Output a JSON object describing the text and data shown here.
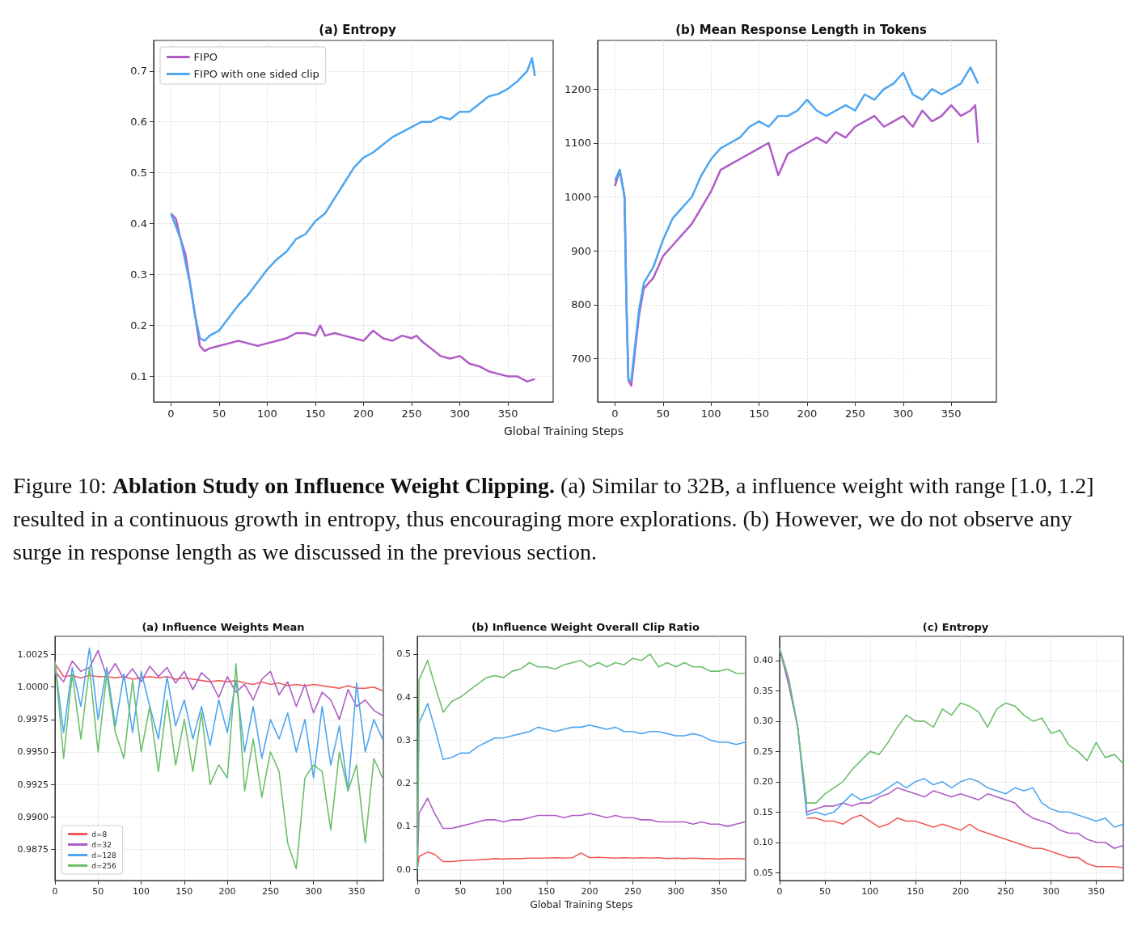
{
  "chart_data": [
    {
      "type": "line",
      "title": "(a) Entropy",
      "xlabel": "Global Training Steps",
      "xlim": [
        -18,
        397
      ],
      "xticks": [
        0,
        50,
        100,
        150,
        200,
        250,
        300,
        350
      ],
      "ylim": [
        0.05,
        0.76
      ],
      "yticks": [
        0.1,
        0.2,
        0.3,
        0.4,
        0.5,
        0.6,
        0.7
      ],
      "grid": true,
      "legend": "top left",
      "series": [
        {
          "name": "FIPO",
          "color": "#b05cc6",
          "x": [
            0,
            5,
            10,
            15,
            20,
            25,
            30,
            35,
            40,
            50,
            60,
            70,
            80,
            90,
            100,
            110,
            120,
            130,
            140,
            150,
            155,
            160,
            170,
            180,
            190,
            200,
            210,
            220,
            230,
            240,
            250,
            255,
            260,
            270,
            280,
            290,
            300,
            310,
            320,
            330,
            340,
            350,
            360,
            370,
            378
          ],
          "values": [
            0.42,
            0.41,
            0.37,
            0.34,
            0.28,
            0.22,
            0.16,
            0.15,
            0.155,
            0.16,
            0.165,
            0.17,
            0.165,
            0.16,
            0.165,
            0.17,
            0.175,
            0.185,
            0.185,
            0.18,
            0.2,
            0.18,
            0.185,
            0.18,
            0.175,
            0.17,
            0.19,
            0.175,
            0.17,
            0.18,
            0.175,
            0.18,
            0.17,
            0.155,
            0.14,
            0.135,
            0.14,
            0.125,
            0.12,
            0.11,
            0.105,
            0.1,
            0.1,
            0.09,
            0.095
          ]
        },
        {
          "name": "FIPO with one sided clip",
          "color": "#4da6f0",
          "x": [
            0,
            10,
            20,
            25,
            30,
            35,
            40,
            50,
            60,
            70,
            80,
            90,
            100,
            110,
            120,
            130,
            140,
            150,
            160,
            170,
            180,
            190,
            200,
            210,
            220,
            230,
            240,
            250,
            260,
            270,
            280,
            290,
            300,
            310,
            320,
            330,
            340,
            350,
            360,
            370,
            375,
            378
          ],
          "values": [
            0.42,
            0.37,
            0.28,
            0.22,
            0.175,
            0.17,
            0.18,
            0.19,
            0.215,
            0.24,
            0.26,
            0.285,
            0.31,
            0.33,
            0.345,
            0.37,
            0.38,
            0.405,
            0.42,
            0.45,
            0.48,
            0.51,
            0.53,
            0.54,
            0.555,
            0.57,
            0.58,
            0.59,
            0.6,
            0.6,
            0.61,
            0.605,
            0.62,
            0.62,
            0.635,
            0.65,
            0.655,
            0.665,
            0.68,
            0.7,
            0.725,
            0.69
          ]
        }
      ]
    },
    {
      "type": "line",
      "title": "(b) Mean Response Length in Tokens",
      "xlim": [
        -18,
        397
      ],
      "xticks": [
        0,
        50,
        100,
        150,
        200,
        250,
        300,
        350
      ],
      "ylim": [
        620,
        1290
      ],
      "yticks": [
        700,
        800,
        900,
        1000,
        1100,
        1200
      ],
      "grid": true,
      "series": [
        {
          "color": "#b05cc6",
          "x": [
            0,
            5,
            10,
            12,
            14,
            17,
            20,
            25,
            30,
            40,
            50,
            60,
            70,
            80,
            90,
            100,
            110,
            120,
            130,
            140,
            150,
            160,
            170,
            180,
            190,
            200,
            210,
            220,
            230,
            240,
            250,
            260,
            270,
            280,
            290,
            300,
            310,
            320,
            330,
            340,
            350,
            360,
            370,
            375,
            378
          ],
          "values": [
            1020,
            1050,
            1000,
            800,
            660,
            650,
            700,
            780,
            830,
            850,
            890,
            910,
            930,
            950,
            980,
            1010,
            1050,
            1060,
            1070,
            1080,
            1090,
            1100,
            1040,
            1080,
            1090,
            1100,
            1110,
            1100,
            1120,
            1110,
            1130,
            1140,
            1150,
            1130,
            1140,
            1150,
            1130,
            1160,
            1140,
            1150,
            1170,
            1150,
            1160,
            1170,
            1100
          ]
        },
        {
          "color": "#4da6f0",
          "x": [
            0,
            5,
            10,
            12,
            14,
            17,
            20,
            25,
            30,
            40,
            50,
            60,
            70,
            80,
            90,
            100,
            110,
            120,
            130,
            140,
            150,
            160,
            170,
            180,
            190,
            200,
            210,
            220,
            230,
            240,
            250,
            260,
            270,
            280,
            290,
            300,
            310,
            320,
            330,
            340,
            350,
            360,
            370,
            378
          ],
          "values": [
            1030,
            1050,
            1000,
            800,
            660,
            660,
            710,
            790,
            840,
            870,
            920,
            960,
            980,
            1000,
            1040,
            1070,
            1090,
            1100,
            1110,
            1130,
            1140,
            1130,
            1150,
            1150,
            1160,
            1180,
            1160,
            1150,
            1160,
            1170,
            1160,
            1190,
            1180,
            1200,
            1210,
            1230,
            1190,
            1180,
            1200,
            1190,
            1200,
            1210,
            1240,
            1210
          ]
        }
      ]
    },
    {
      "type": "other",
      "annotations": [
        "Figure 10: ",
        "Ablation Study on Influence Weight Clipping.",
        " (a) Similar to 32B, a influence weight with range [1.0, 1.2] resulted in a continuous growth in entropy, thus encouraging more explorations. (b) However, we do not observe any surge in response length as we discussed in the previous section."
      ]
    },
    {
      "type": "line",
      "title": "(a) Influence Weights Mean",
      "x": [
        0,
        10,
        20,
        30,
        40,
        50,
        60,
        70,
        80,
        90,
        100,
        110,
        120,
        130,
        140,
        150,
        160,
        170,
        180,
        190,
        200,
        210,
        220,
        230,
        240,
        250,
        260,
        270,
        280,
        290,
        300,
        310,
        320,
        330,
        340,
        350,
        360,
        370,
        380
      ],
      "xlim": [
        0,
        381
      ],
      "xticks": [
        0,
        50,
        100,
        150,
        200,
        250,
        300,
        350
      ],
      "ylim": [
        0.9851,
        1.0039
      ],
      "yticks": [
        {
          "value": 0.9875,
          "label": "0.9875"
        },
        {
          "value": 0.99,
          "label": "0.9900"
        },
        {
          "value": 0.9925,
          "label": "0.9925"
        },
        {
          "value": 0.995,
          "label": "0.9950"
        },
        {
          "value": 0.9975,
          "label": "0.9975"
        },
        {
          "value": 1,
          "label": "1.0000"
        },
        1.0025
      ],
      "grid": true,
      "legend": "bottom left",
      "series": [
        {
          "name": "d=8",
          "color": "#ef5a5a",
          "values": [
            1.0018,
            1.0008,
            1.0009,
            1.0007,
            1.0009,
            1.0008,
            1.0008,
            1.0007,
            1.0008,
            1.0006,
            1.0007,
            1.0008,
            1.0007,
            1.0008,
            1.0006,
            1.0007,
            1.0006,
            1.0005,
            1.0004,
            1.0005,
            1.0004,
            1.0005,
            1.0003,
            1.0002,
            1.0004,
            1.0002,
            1.0003,
            1.0001,
            1.0002,
            1.0001,
            1.0002,
            1.0001,
            1.0,
            0.9999,
            1.0001,
            0.9999,
            0.9999,
            1.0,
            0.9997
          ]
        },
        {
          "name": "d=32",
          "color": "#b05cc6",
          "values": [
            1.0012,
            1.0004,
            1.002,
            1.0012,
            1.0015,
            1.0028,
            1.0008,
            1.0018,
            1.0006,
            1.0014,
            1.0004,
            1.0016,
            1.0008,
            1.0015,
            1.0003,
            1.0012,
            0.9998,
            1.0011,
            1.0005,
            0.9992,
            1.0008,
            0.9996,
            1.0002,
            0.999,
            1.0006,
            1.0012,
            0.9994,
            1.0004,
            0.9985,
            1.0002,
            0.998,
            0.9996,
            0.999,
            0.9975,
            0.9998,
            0.9985,
            0.999,
            0.9982,
            0.9978
          ]
        },
        {
          "name": "d=128",
          "color": "#4da6f0",
          "values": [
            1.0018,
            0.9965,
            1.0015,
            0.9985,
            1.003,
            0.9975,
            1.0015,
            0.997,
            1.001,
            0.9965,
            1.0012,
            0.9985,
            0.996,
            1.0008,
            0.997,
            0.999,
            0.996,
            0.9985,
            0.9955,
            0.999,
            0.9965,
            1.0005,
            0.995,
            0.9985,
            0.9945,
            0.9975,
            0.996,
            0.998,
            0.995,
            0.9975,
            0.993,
            0.9985,
            0.994,
            0.997,
            0.992,
            1.0003,
            0.995,
            0.9975,
            0.996
          ]
        },
        {
          "name": "d=256",
          "color": "#6cbf6c",
          "values": [
            1.002,
            0.9945,
            1.001,
            0.996,
            1.0015,
            0.995,
            1.001,
            0.9965,
            0.9945,
            1.0005,
            0.995,
            0.9985,
            0.9935,
            0.999,
            0.994,
            0.9975,
            0.9935,
            0.998,
            0.9925,
            0.994,
            0.993,
            1.0018,
            0.992,
            0.996,
            0.9915,
            0.995,
            0.9935,
            0.988,
            0.986,
            0.993,
            0.994,
            0.9935,
            0.989,
            0.995,
            0.992,
            0.994,
            0.988,
            0.9945,
            0.993
          ]
        }
      ]
    },
    {
      "type": "line",
      "title": "(b) Influence Weight Overall Clip Ratio",
      "xlabel": "Global Training Steps",
      "x": [
        0,
        2,
        12,
        20,
        30,
        40,
        50,
        60,
        70,
        80,
        90,
        100,
        110,
        120,
        130,
        140,
        150,
        160,
        170,
        180,
        190,
        200,
        210,
        220,
        230,
        240,
        250,
        260,
        270,
        280,
        290,
        300,
        310,
        320,
        330,
        340,
        350,
        360,
        370,
        380
      ],
      "xlim": [
        0,
        381
      ],
      "xticks": [
        0,
        50,
        100,
        150,
        200,
        250,
        300,
        350
      ],
      "ylim": [
        -0.026,
        0.541
      ],
      "yticks": [
        {
          "value": 0,
          "label": "0.0"
        },
        0.1,
        0.2,
        0.3,
        0.4,
        0.5
      ],
      "grid": true,
      "series": [
        {
          "color": "#ef5a5a",
          "values": [
            0,
            0.03,
            0.04,
            0.035,
            0.018,
            0.018,
            0.02,
            0.021,
            0.022,
            0.023,
            0.025,
            0.024,
            0.025,
            0.025,
            0.026,
            0.026,
            0.026,
            0.027,
            0.026,
            0.027,
            0.038,
            0.027,
            0.028,
            0.027,
            0.026,
            0.027,
            0.026,
            0.027,
            0.026,
            0.027,
            0.025,
            0.026,
            0.025,
            0.026,
            0.025,
            0.025,
            0.024,
            0.025,
            0.025,
            0.024
          ]
        },
        {
          "color": "#b05cc6",
          "values": [
            0,
            0.13,
            0.165,
            0.13,
            0.095,
            0.095,
            0.1,
            0.105,
            0.11,
            0.115,
            0.115,
            0.11,
            0.115,
            0.115,
            0.12,
            0.125,
            0.125,
            0.125,
            0.12,
            0.125,
            0.125,
            0.13,
            0.125,
            0.12,
            0.125,
            0.12,
            0.12,
            0.115,
            0.115,
            0.11,
            0.11,
            0.11,
            0.11,
            0.105,
            0.11,
            0.105,
            0.105,
            0.1,
            0.105,
            0.11
          ]
        },
        {
          "color": "#4da6f0",
          "values": [
            0,
            0.34,
            0.385,
            0.33,
            0.255,
            0.26,
            0.27,
            0.27,
            0.285,
            0.295,
            0.305,
            0.305,
            0.31,
            0.315,
            0.32,
            0.33,
            0.325,
            0.32,
            0.325,
            0.33,
            0.33,
            0.335,
            0.33,
            0.325,
            0.33,
            0.32,
            0.32,
            0.315,
            0.32,
            0.32,
            0.315,
            0.31,
            0.31,
            0.315,
            0.31,
            0.3,
            0.295,
            0.295,
            0.29,
            0.295
          ]
        },
        {
          "color": "#6cbf6c",
          "values": [
            0,
            0.44,
            0.485,
            0.43,
            0.365,
            0.39,
            0.4,
            0.415,
            0.43,
            0.445,
            0.45,
            0.445,
            0.46,
            0.465,
            0.48,
            0.47,
            0.47,
            0.465,
            0.475,
            0.48,
            0.485,
            0.47,
            0.48,
            0.47,
            0.48,
            0.475,
            0.49,
            0.485,
            0.5,
            0.47,
            0.48,
            0.47,
            0.48,
            0.47,
            0.47,
            0.46,
            0.46,
            0.465,
            0.455,
            0.455
          ]
        }
      ]
    },
    {
      "type": "line",
      "title": "(c) Entropy",
      "x": [
        0,
        10,
        20,
        30,
        40,
        50,
        60,
        70,
        80,
        90,
        100,
        110,
        120,
        130,
        140,
        150,
        160,
        170,
        180,
        190,
        200,
        210,
        220,
        230,
        240,
        250,
        260,
        270,
        280,
        290,
        300,
        310,
        320,
        330,
        340,
        350,
        360,
        370,
        380
      ],
      "xlim": [
        0,
        380
      ],
      "xticks": [
        0,
        50,
        100,
        150,
        200,
        250,
        300,
        350
      ],
      "ylim": [
        0.037,
        0.44
      ],
      "yticks": [
        {
          "value": 0.05,
          "label": "0.05"
        },
        {
          "value": 0.1,
          "label": "0.10"
        },
        {
          "value": 0.15,
          "label": "0.15"
        },
        {
          "value": 0.2,
          "label": "0.20"
        },
        {
          "value": 0.25,
          "label": "0.25"
        },
        {
          "value": 0.3,
          "label": "0.30"
        },
        {
          "value": 0.35,
          "label": "0.35"
        },
        {
          "value": 0.4,
          "label": "0.40"
        }
      ],
      "grid": true,
      "series": [
        {
          "color": "#ef5a5a",
          "values": [
            null,
            null,
            null,
            0.14,
            0.14,
            0.135,
            0.135,
            0.13,
            0.14,
            0.145,
            0.135,
            0.125,
            0.13,
            0.14,
            0.135,
            0.135,
            0.13,
            0.125,
            0.13,
            0.125,
            0.12,
            0.13,
            0.12,
            0.115,
            0.11,
            0.105,
            0.1,
            0.095,
            0.09,
            0.09,
            0.085,
            0.08,
            0.075,
            0.075,
            0.065,
            0.06,
            0.06,
            0.06,
            0.058
          ]
        },
        {
          "color": "#b05cc6",
          "values": [
            0.42,
            0.36,
            0.29,
            0.15,
            0.155,
            0.16,
            0.16,
            0.165,
            0.16,
            0.165,
            0.165,
            0.175,
            0.18,
            0.19,
            0.185,
            0.18,
            0.175,
            0.185,
            0.18,
            0.175,
            0.18,
            0.175,
            0.17,
            0.18,
            0.175,
            0.17,
            0.165,
            0.15,
            0.14,
            0.135,
            0.13,
            0.12,
            0.115,
            0.115,
            0.105,
            0.1,
            0.1,
            0.09,
            0.095
          ]
        },
        {
          "color": "#4da6f0",
          "values": [
            0.42,
            0.37,
            0.29,
            0.145,
            0.15,
            0.145,
            0.15,
            0.165,
            0.18,
            0.17,
            0.175,
            0.18,
            0.19,
            0.2,
            0.19,
            0.2,
            0.205,
            0.195,
            0.2,
            0.19,
            0.2,
            0.205,
            0.2,
            0.19,
            0.185,
            0.18,
            0.19,
            0.185,
            0.19,
            0.165,
            0.155,
            0.15,
            0.15,
            0.145,
            0.14,
            0.135,
            0.14,
            0.125,
            0.13
          ]
        },
        {
          "color": "#6cbf6c",
          "values": [
            0.42,
            0.37,
            0.29,
            0.165,
            0.165,
            0.18,
            0.19,
            0.2,
            0.22,
            0.235,
            0.25,
            0.245,
            0.265,
            0.29,
            0.31,
            0.3,
            0.3,
            0.29,
            0.32,
            0.31,
            0.33,
            0.325,
            0.315,
            0.29,
            0.32,
            0.33,
            0.325,
            0.31,
            0.3,
            0.305,
            0.28,
            0.285,
            0.26,
            0.25,
            0.235,
            0.265,
            0.24,
            0.245,
            0.23
          ]
        }
      ]
    }
  ]
}
